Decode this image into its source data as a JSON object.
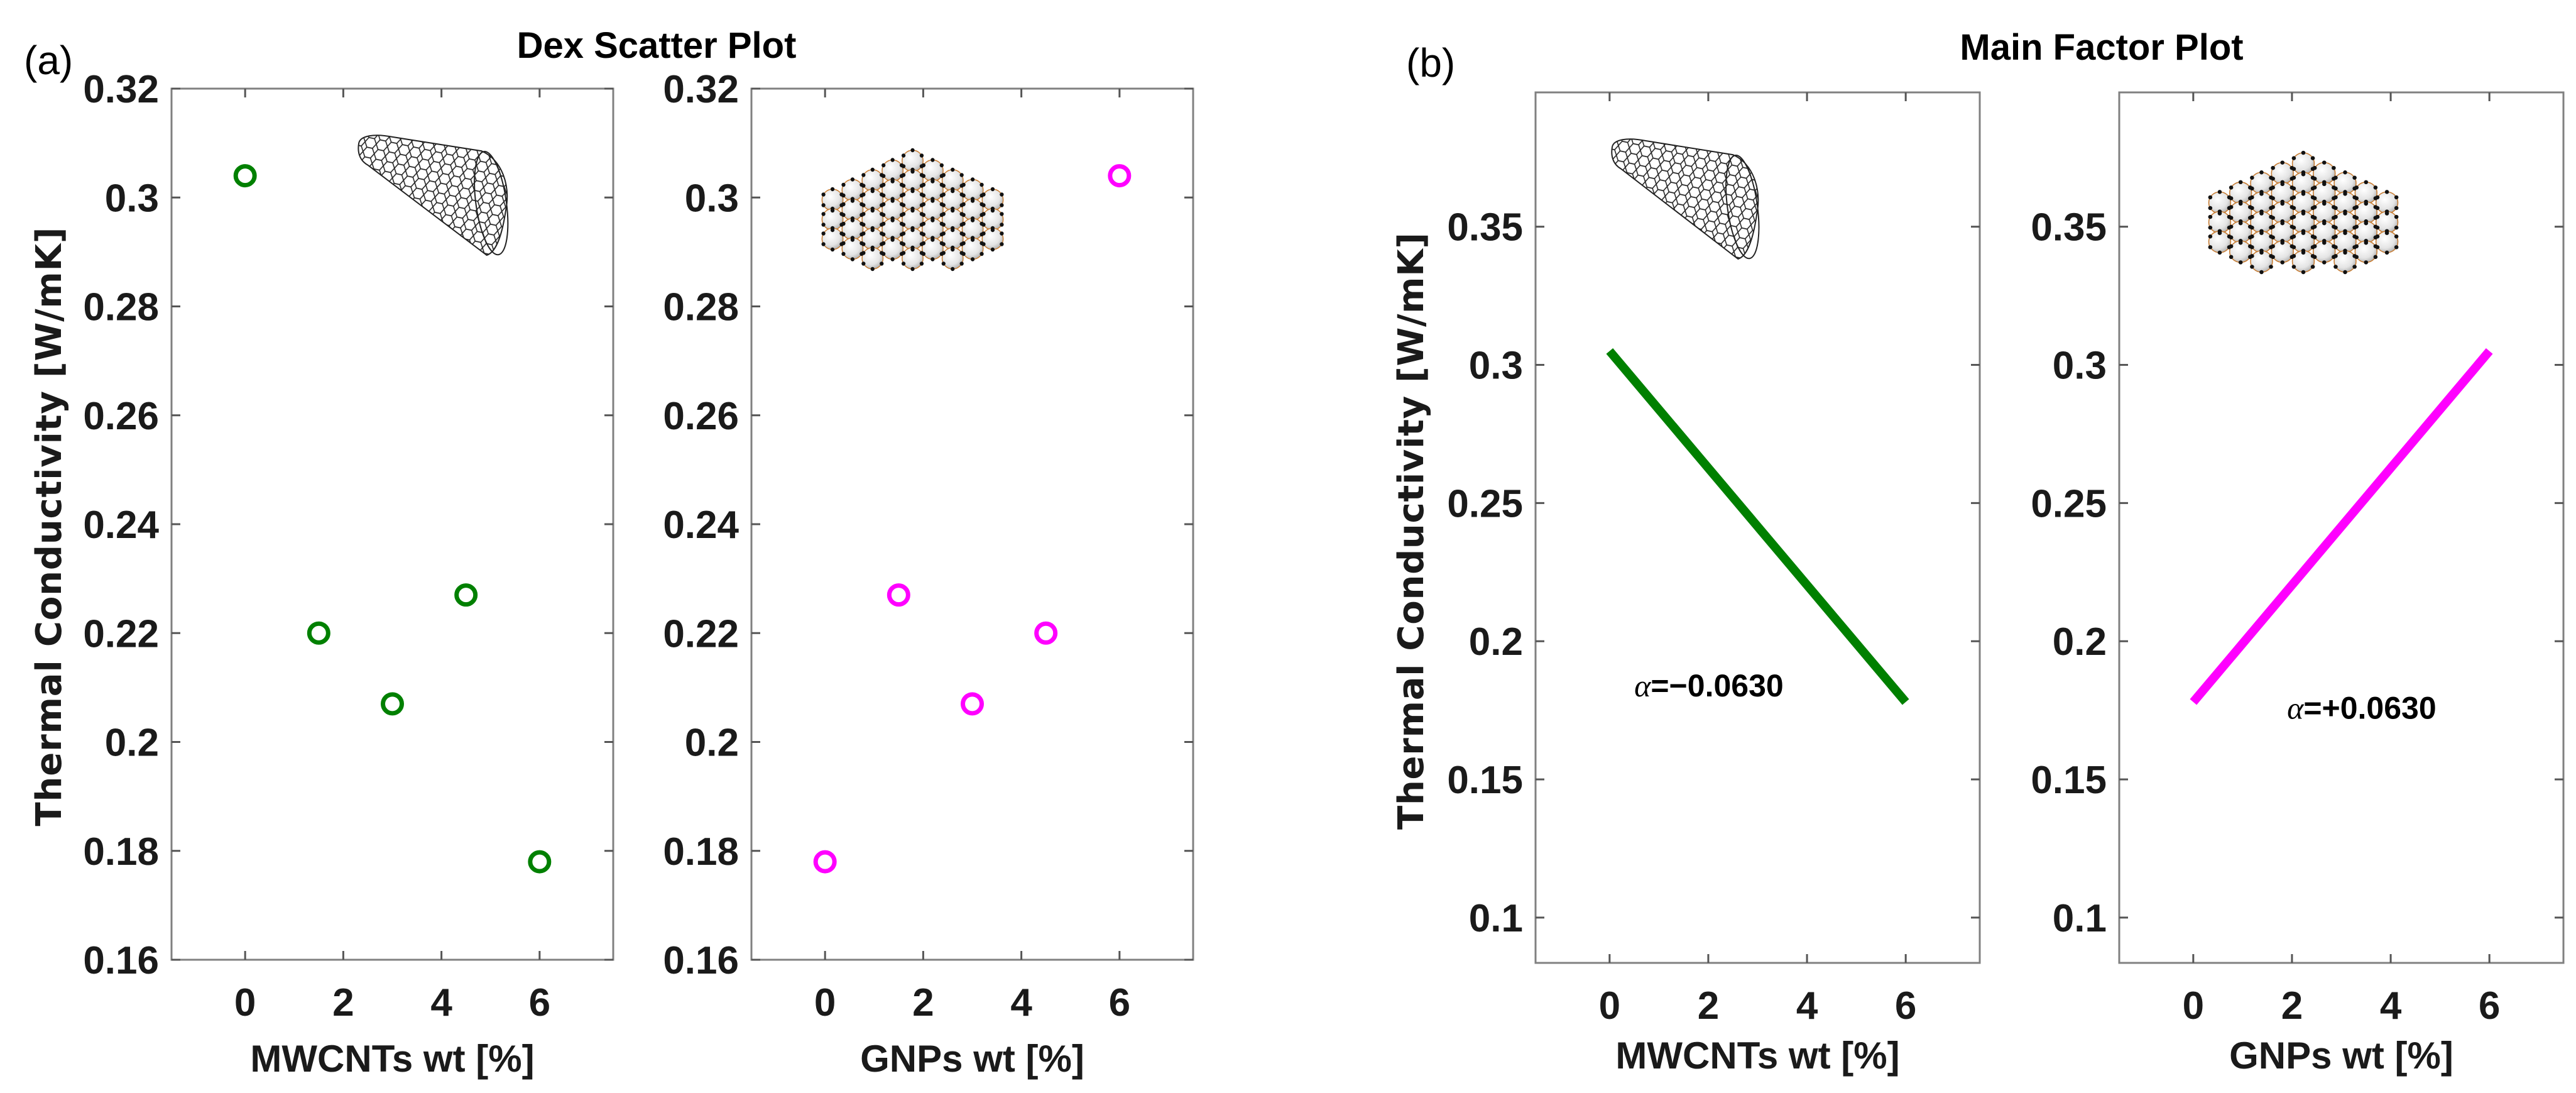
{
  "figure": {
    "panel_a_tag": "(a)",
    "panel_a_title": "Dex Scatter Plot",
    "panel_b_tag": "(b)",
    "panel_b_title": "Main Factor Plot",
    "ylabel": "Thermal Conductivity [W/mK]",
    "colors": {
      "mwcnt": "#008000",
      "gnp": "#FF00FF",
      "axis": "#808080"
    }
  },
  "chart_data": [
    {
      "id": "a1",
      "type": "scatter",
      "group_title": "Dex Scatter Plot",
      "xlabel": "MWCNTs wt [%]",
      "ylabel": "Thermal Conductivity [W/mK]",
      "x": [
        0,
        1.5,
        3,
        4.5,
        6
      ],
      "y": [
        0.304,
        0.22,
        0.207,
        0.227,
        0.178
      ],
      "xlim": [
        -1.5,
        7.5
      ],
      "ylim": [
        0.16,
        0.32
      ],
      "xticks": [
        0,
        2,
        4,
        6
      ],
      "xtick_labels": [
        "0",
        "2",
        "4",
        "6"
      ],
      "yticks": [
        0.16,
        0.18,
        0.2,
        0.22,
        0.24,
        0.26,
        0.28,
        0.3,
        0.32
      ],
      "ytick_labels": [
        "0.16",
        "0.18",
        "0.2",
        "0.22",
        "0.24",
        "0.26",
        "0.28",
        "0.3",
        "0.32"
      ],
      "marker": "open-circle",
      "color": "#008000",
      "inset_image": "nanotube",
      "grid": false
    },
    {
      "id": "a2",
      "type": "scatter",
      "group_title": "Dex Scatter Plot",
      "xlabel": "GNPs wt [%]",
      "x": [
        0,
        1.5,
        3,
        4.5,
        6
      ],
      "y": [
        0.178,
        0.227,
        0.207,
        0.22,
        0.304
      ],
      "xlim": [
        -1.5,
        7.5
      ],
      "ylim": [
        0.16,
        0.32
      ],
      "xticks": [
        0,
        2,
        4,
        6
      ],
      "xtick_labels": [
        "0",
        "2",
        "4",
        "6"
      ],
      "yticks": [
        0.16,
        0.18,
        0.2,
        0.22,
        0.24,
        0.26,
        0.28,
        0.3,
        0.32
      ],
      "ytick_labels": [
        "0.16",
        "0.18",
        "0.2",
        "0.22",
        "0.24",
        "0.26",
        "0.28",
        "0.3",
        "0.32"
      ],
      "marker": "open-circle",
      "color": "#FF00FF",
      "inset_image": "graphene",
      "grid": false
    },
    {
      "id": "b1",
      "type": "line",
      "group_title": "Main Factor Plot",
      "xlabel": "MWCNTs wt [%]",
      "ylabel": "Thermal Conductivity [W/mK]",
      "x": [
        0,
        6
      ],
      "y": [
        0.305,
        0.178
      ],
      "xlim": [
        -1.5,
        7.5
      ],
      "ylim": [
        0.0836,
        0.3986
      ],
      "xticks": [
        0,
        2,
        4,
        6
      ],
      "xtick_labels": [
        "0",
        "2",
        "4",
        "6"
      ],
      "yticks": [
        0.1,
        0.15,
        0.2,
        0.25,
        0.3,
        0.35
      ],
      "ytick_labels": [
        "0.1",
        "0.15",
        "0.2",
        "0.25",
        "0.3",
        "0.35"
      ],
      "color": "#008000",
      "inset_image": "nanotube",
      "grid": false,
      "annotation": {
        "symbol": "α",
        "text": "=−0.0630",
        "at": [
          0.5,
          0.18
        ]
      }
    },
    {
      "id": "b2",
      "type": "line",
      "group_title": "Main Factor Plot",
      "xlabel": "GNPs wt [%]",
      "x": [
        0,
        6
      ],
      "y": [
        0.178,
        0.305
      ],
      "xlim": [
        -1.5,
        7.5
      ],
      "ylim": [
        0.0836,
        0.3986
      ],
      "xticks": [
        0,
        2,
        4,
        6
      ],
      "xtick_labels": [
        "0",
        "2",
        "4",
        "6"
      ],
      "yticks": [
        0.1,
        0.15,
        0.2,
        0.25,
        0.3,
        0.35
      ],
      "ytick_labels": [
        "0.1",
        "0.15",
        "0.2",
        "0.25",
        "0.3",
        "0.35"
      ],
      "color": "#FF00FF",
      "inset_image": "graphene",
      "grid": false,
      "annotation": {
        "symbol": "α",
        "text": "=+0.0630",
        "at": [
          1.9,
          0.172
        ]
      }
    }
  ]
}
